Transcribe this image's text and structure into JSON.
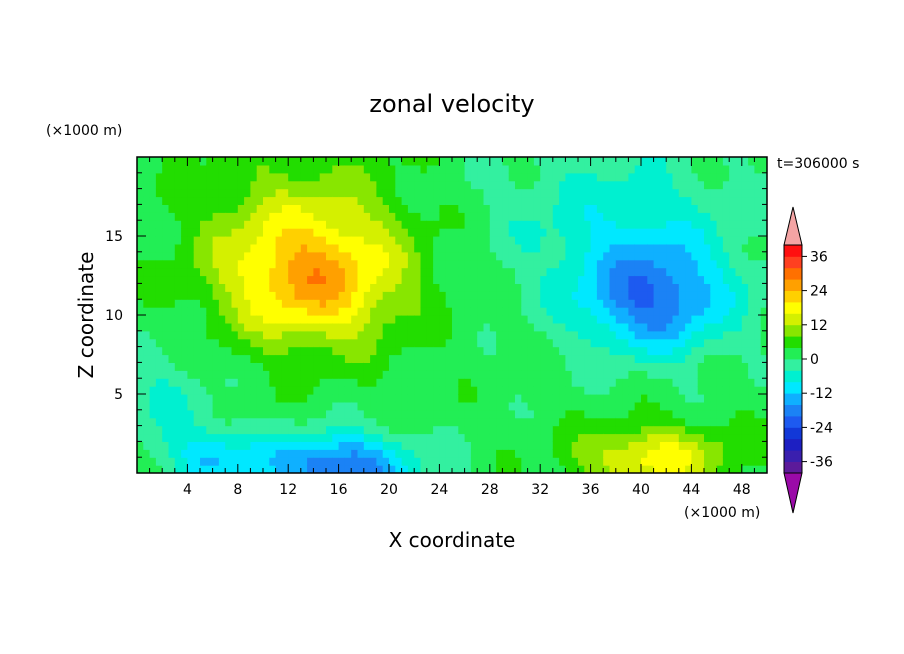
{
  "chart_data": {
    "type": "heatmap",
    "title": "zonal velocity",
    "xlabel": "X coordinate",
    "ylabel": "Z coordinate",
    "x_unit": "(×1000 m)",
    "y_unit": "(×1000 m)",
    "time_label": "t=306000 s",
    "xlim": [
      0,
      50
    ],
    "ylim": [
      0,
      20
    ],
    "x_ticks": [
      4,
      8,
      12,
      16,
      20,
      24,
      28,
      32,
      36,
      40,
      44,
      48
    ],
    "y_ticks": [
      5,
      10,
      15
    ],
    "colorbar": {
      "levels": [
        -40,
        -36,
        -32,
        -28,
        -24,
        -20,
        -16,
        -12,
        -8,
        -4,
        0,
        4,
        8,
        12,
        16,
        20,
        24,
        28,
        32,
        36,
        40
      ],
      "labels": [
        -36,
        -24,
        -12,
        0,
        12,
        24,
        36
      ],
      "colors": [
        "#5c1a9a",
        "#3a1fae",
        "#1d1fc2",
        "#1238d8",
        "#1d5af0",
        "#1b82f5",
        "#0fb0ff",
        "#00e8ff",
        "#00f0d0",
        "#33f0a0",
        "#22ee55",
        "#22dd00",
        "#88e600",
        "#d4f000",
        "#ffff00",
        "#ffd000",
        "#ffa000",
        "#ff7000",
        "#ff4020",
        "#ff1010"
      ],
      "under_color": "#9a0aa8",
      "over_color": "#f4a4a4"
    },
    "features": [
      {
        "x": 14,
        "z": 12,
        "sx": 7,
        "sz": 4,
        "amp": 20
      },
      {
        "x": 13,
        "z": 16,
        "sx": 9,
        "sz": 5,
        "amp": 8
      },
      {
        "x": 41,
        "z": 11,
        "sx": 6,
        "sz": 3.5,
        "amp": -20
      },
      {
        "x": 38,
        "z": 16,
        "sx": 10,
        "sz": 5,
        "amp": -8
      },
      {
        "x": 16,
        "z": 0.5,
        "sx": 6,
        "sz": 2,
        "amp": -22
      },
      {
        "x": 6,
        "z": 1,
        "sx": 4,
        "sz": 2,
        "amp": -12
      },
      {
        "x": 41,
        "z": 1,
        "sx": 6,
        "sz": 2,
        "amp": 16
      },
      {
        "x": 2,
        "z": 5,
        "sx": 4,
        "sz": 3,
        "amp": -6
      }
    ]
  }
}
